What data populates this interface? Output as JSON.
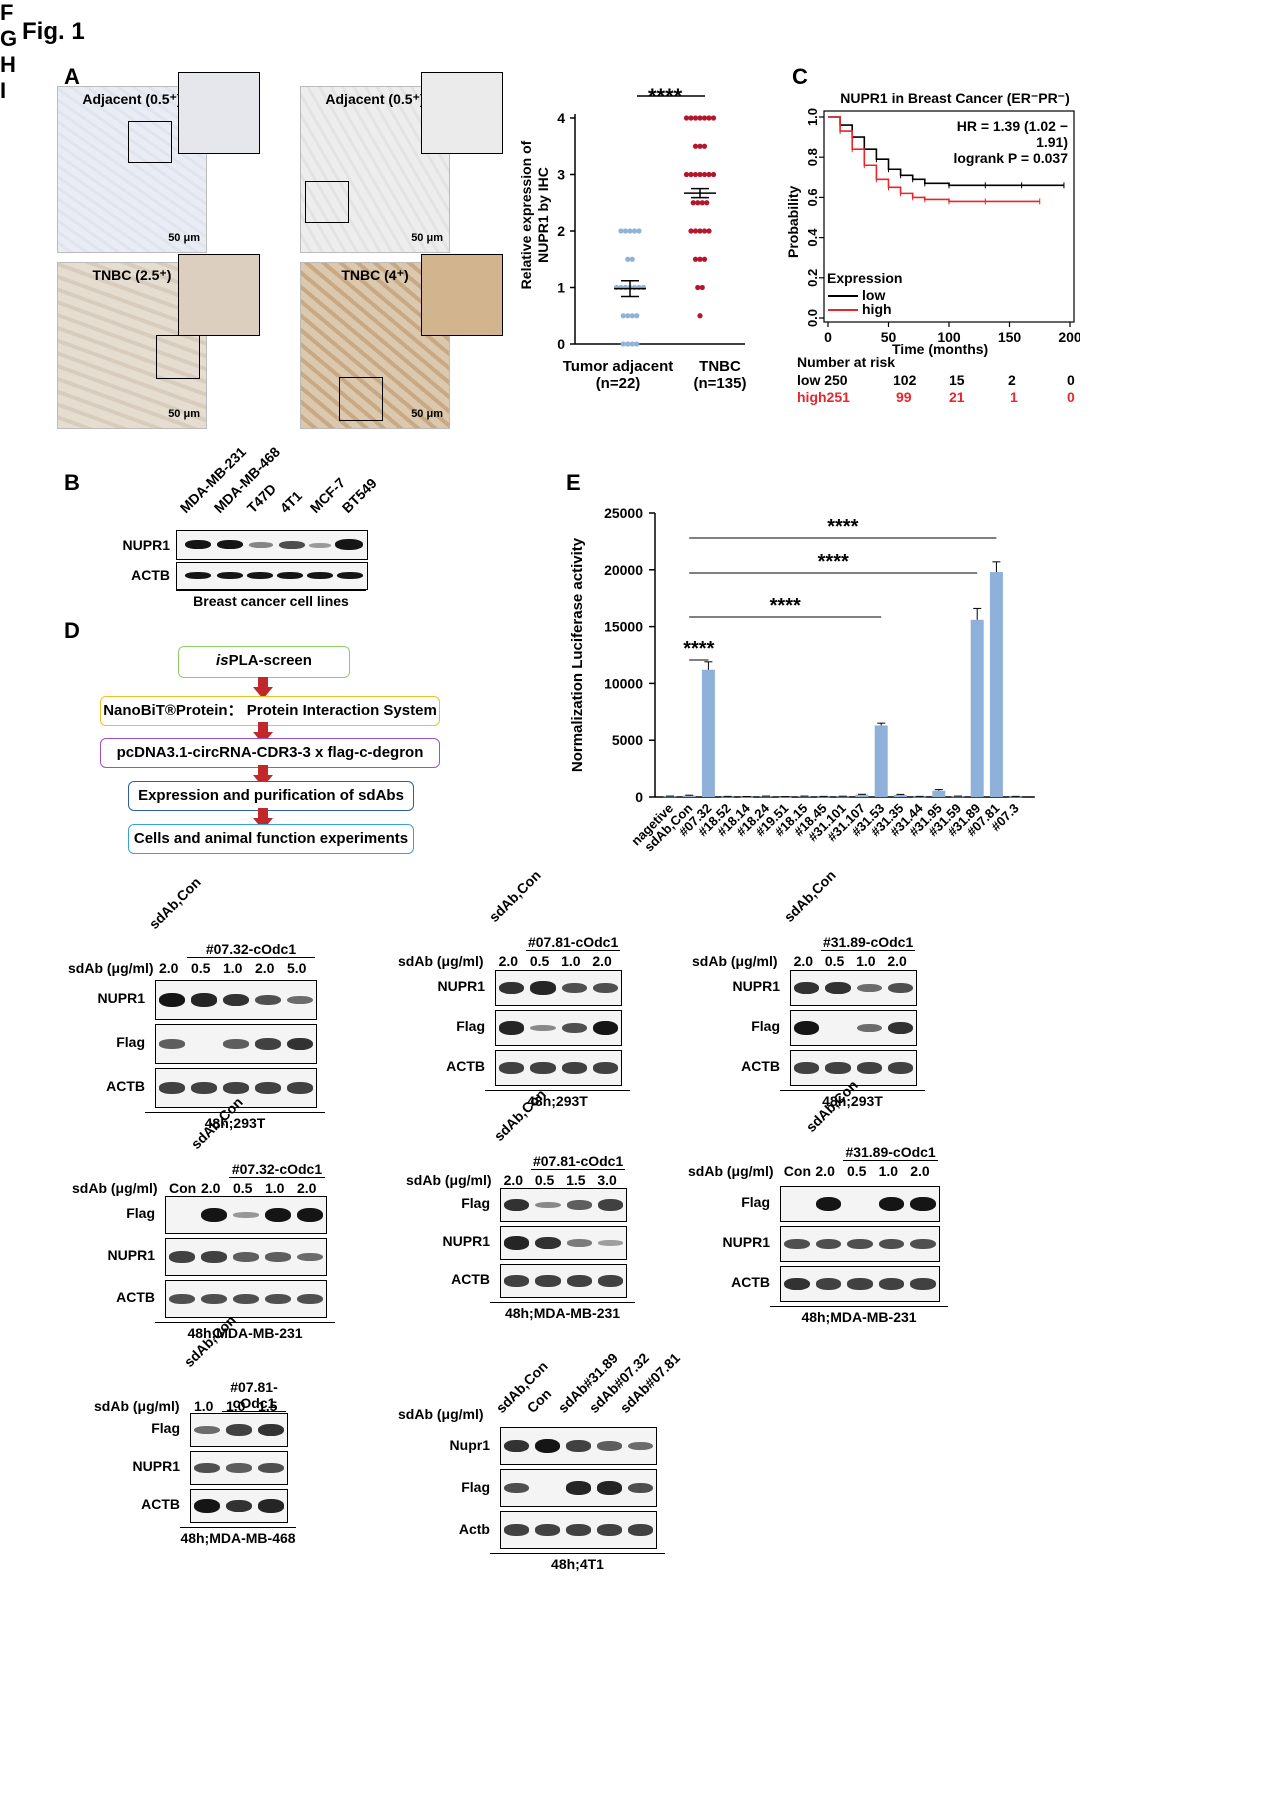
{
  "figure": {
    "title": "Fig. 1"
  },
  "panels": {
    "A": {
      "letter": "A",
      "images": [
        {
          "caption": "Adjacent (0.5⁺)",
          "scale": "50 μm"
        },
        {
          "caption": "Adjacent (0.5⁺)",
          "scale": "50 μm"
        },
        {
          "caption": "TNBC (2.5⁺)",
          "scale": "50 μm"
        },
        {
          "caption": "TNBC (4⁺)",
          "scale": "50 μm"
        }
      ],
      "scatter": {
        "ylabel_line1": "Relative expression of",
        "ylabel_line2": "NUPR1 by IHC",
        "yticks": [
          "0",
          "1",
          "2",
          "3",
          "4"
        ],
        "significance": "****",
        "groups": [
          {
            "name": "Tumor adjacent",
            "n": "(n=22)"
          },
          {
            "name": "TNBC",
            "n": "(n=135)"
          }
        ]
      }
    },
    "C": {
      "letter": "C",
      "title": "NUPR1 in Breast Cancer (ER⁻PR⁻)",
      "hr": "HR = 1.39 (1.02 − 1.91)",
      "logrank": "logrank P = 0.037",
      "ylabel": "Probability",
      "xlabel": "Time (months)",
      "yticks": [
        "0.0",
        "0.2",
        "0.4",
        "0.6",
        "0.8",
        "1.0"
      ],
      "xticks": [
        "0",
        "50",
        "100",
        "150",
        "200"
      ],
      "legend_title": "Expression",
      "legend": [
        {
          "label": "low",
          "color": "#000000"
        },
        {
          "label": "high",
          "color": "#e8262a"
        }
      ],
      "risk_title": "Number at risk",
      "risk_rows": [
        {
          "label": "low 250",
          "values": [
            "102",
            "15",
            "2",
            "0"
          ],
          "color": "#000000"
        },
        {
          "label": "high251",
          "values": [
            "99",
            "21",
            "1",
            "0"
          ],
          "color": "#e8262a"
        }
      ]
    },
    "B": {
      "letter": "B",
      "lanes": [
        "MDA-MB-231",
        "MDA-MB-468",
        "T47D",
        "4T1",
        "MCF-7",
        "BT549"
      ],
      "rows": [
        "NUPR1",
        "ACTB"
      ],
      "condition": "Breast cancer cell lines"
    },
    "D": {
      "letter": "D",
      "steps": [
        {
          "pre": "is",
          "text": "PLA-screen"
        },
        {
          "pre": "",
          "text": "NanoBiT®Protein： Protein Interaction System"
        },
        {
          "pre": "",
          "text": "pcDNA3.1-circRNA-CDR3-3 x flag-c-degron"
        },
        {
          "pre": "",
          "text": "Expression and purification of sdAbs"
        },
        {
          "pre": "",
          "text": "Cells and animal function experiments"
        }
      ]
    },
    "F": {
      "letter": "F"
    },
    "G": {
      "letter": "G"
    },
    "H": {
      "letter": "H"
    },
    "I": {
      "letter": "I"
    }
  },
  "chart_data": [
    {
      "type": "scatter",
      "title": "",
      "ylabel": "Relative expression of NUPR1 by IHC",
      "ylim": [
        0,
        4
      ],
      "categories": [
        "Tumor adjacent (n=22)",
        "TNBC (n=135)"
      ],
      "series": [
        {
          "name": "Tumor adjacent",
          "color": "#8fb3d9",
          "mean": 0.98,
          "sem": 0.14,
          "values": [
            2,
            2,
            2,
            2,
            2,
            1.5,
            1.5,
            1,
            1,
            1,
            1,
            1,
            1,
            1,
            0.5,
            0.5,
            0.5,
            0.5,
            0,
            0,
            0,
            0
          ]
        },
        {
          "name": "TNBC",
          "color": "#b5162b",
          "mean": 2.67,
          "sem": 0.08,
          "values": [
            4,
            4,
            4,
            4,
            4,
            4,
            4,
            3.5,
            3.5,
            3.5,
            3,
            3,
            3,
            3,
            3,
            3,
            3,
            2.5,
            2.5,
            2.5,
            2.5,
            2,
            2,
            2,
            2,
            2,
            1.5,
            1.5,
            1.5,
            1,
            1,
            0.5
          ]
        }
      ],
      "significance": "****"
    },
    {
      "type": "line",
      "title": "NUPR1 in Breast Cancer (ER⁻PR⁻)",
      "xlabel": "Time (months)",
      "ylabel": "Probability",
      "xlim": [
        0,
        200
      ],
      "ylim": [
        0,
        1
      ],
      "series": [
        {
          "name": "low",
          "color": "#000000",
          "x": [
            0,
            10,
            20,
            30,
            40,
            50,
            60,
            70,
            80,
            100,
            130,
            160,
            195
          ],
          "y": [
            1,
            0.96,
            0.9,
            0.84,
            0.79,
            0.74,
            0.71,
            0.69,
            0.67,
            0.66,
            0.66,
            0.66,
            0.66
          ]
        },
        {
          "name": "high",
          "color": "#e8262a",
          "x": [
            0,
            10,
            20,
            30,
            40,
            50,
            60,
            70,
            80,
            100,
            130,
            175
          ],
          "y": [
            1,
            0.93,
            0.84,
            0.76,
            0.69,
            0.65,
            0.62,
            0.6,
            0.59,
            0.58,
            0.58,
            0.58
          ]
        }
      ]
    },
    {
      "type": "bar",
      "title": "E",
      "ylabel": "Normalization Luciferase activity",
      "ylim": [
        0,
        25000
      ],
      "yticks": [
        "0",
        "5000",
        "10000",
        "15000",
        "20000",
        "25000"
      ],
      "categories": [
        "nagetive",
        "sdAb,Con",
        "#07.32",
        "#18.52",
        "#18.14",
        "#18.24",
        "#19.51",
        "#18.15",
        "#18.45",
        "#31.101",
        "#31.107",
        "#31.53",
        "#31.35",
        "#31.44",
        "#31.95",
        "#31.59",
        "#31.89",
        "#07.81",
        "#07.3"
      ],
      "values": [
        60,
        120,
        11200,
        40,
        30,
        60,
        20,
        60,
        40,
        50,
        200,
        6300,
        180,
        40,
        550,
        60,
        15600,
        19800,
        40
      ],
      "errors": [
        20,
        40,
        700,
        15,
        10,
        20,
        10,
        20,
        15,
        20,
        40,
        200,
        50,
        15,
        100,
        20,
        1000,
        900,
        15
      ],
      "significance": [
        {
          "from": "sdAb,Con",
          "to": "#07.32",
          "label": "****"
        },
        {
          "from": "sdAb,Con",
          "to": "#31.53",
          "label": "****"
        },
        {
          "from": "sdAb,Con",
          "to": "#31.89",
          "label": "****"
        },
        {
          "from": "sdAb,Con",
          "to": "#07.81",
          "label": "****"
        }
      ]
    }
  ],
  "blots": {
    "F1": {
      "dose_label": "sdAb (μg/ml)",
      "rot": "sdAb,Con",
      "group": "#07.32-cOdc1",
      "doses": [
        "2.0",
        "0.5",
        "1.0",
        "2.0",
        "5.0"
      ],
      "rows": [
        "NUPR1",
        "Flag",
        "ACTB"
      ],
      "condition": "48h;293T"
    },
    "F2": {
      "dose_label": "sdAb (μg/ml)",
      "rot": "sdAb,Con",
      "group": "#07.81-cOdc1",
      "doses": [
        "2.0",
        "0.5",
        "1.0",
        "2.0"
      ],
      "rows": [
        "NUPR1",
        "Flag",
        "ACTB"
      ],
      "condition": "48h;293T"
    },
    "F3": {
      "dose_label": "sdAb (μg/ml)",
      "rot": "sdAb,Con",
      "group": "#31.89-cOdc1",
      "doses": [
        "2.0",
        "0.5",
        "1.0",
        "2.0"
      ],
      "rows": [
        "NUPR1",
        "Flag",
        "ACTB"
      ],
      "condition": "48h;293T"
    },
    "G1": {
      "dose_label": "sdAb (μg/ml)",
      "con": "Con",
      "rot": "sdAb,Con",
      "group": "#07.32-cOdc1",
      "doses": [
        "2.0",
        "0.5",
        "1.0",
        "2.0"
      ],
      "rows": [
        "Flag",
        "NUPR1",
        "ACTB"
      ],
      "condition": "48h;MDA-MB-231"
    },
    "G2": {
      "dose_label": "sdAb (μg/ml)",
      "rot": "sdAb,Con",
      "group": "#07.81-cOdc1",
      "doses": [
        "2.0",
        "0.5",
        "1.5",
        "3.0"
      ],
      "rows": [
        "Flag",
        "NUPR1",
        "ACTB"
      ],
      "condition": "48h;MDA-MB-231"
    },
    "G3": {
      "dose_label": "sdAb (μg/ml)",
      "con": "Con",
      "rot": "sdAb,Con",
      "group": "#31.89-cOdc1",
      "doses": [
        "2.0",
        "0.5",
        "1.0",
        "2.0"
      ],
      "rows": [
        "Flag",
        "NUPR1",
        "ACTB"
      ],
      "condition": "48h;MDA-MB-231"
    },
    "H": {
      "dose_label": "sdAb (μg/ml)",
      "rot": "sdAb,Con",
      "group": "#07.81-cOdc1",
      "doses": [
        "1.0",
        "1.0",
        "1.5"
      ],
      "rows": [
        "Flag",
        "NUPR1",
        "ACTB"
      ],
      "condition": "48h;MDA-MB-468"
    },
    "I": {
      "dose_label": "sdAb (μg/ml)",
      "lanes": [
        "sdAb,Con",
        "Con",
        "sdAb#31.89",
        "sdAb#07.32",
        "sdAb#07.81"
      ],
      "rows": [
        "Nupr1",
        "Flag",
        "Actb"
      ],
      "condition": "48h;4T1"
    }
  }
}
